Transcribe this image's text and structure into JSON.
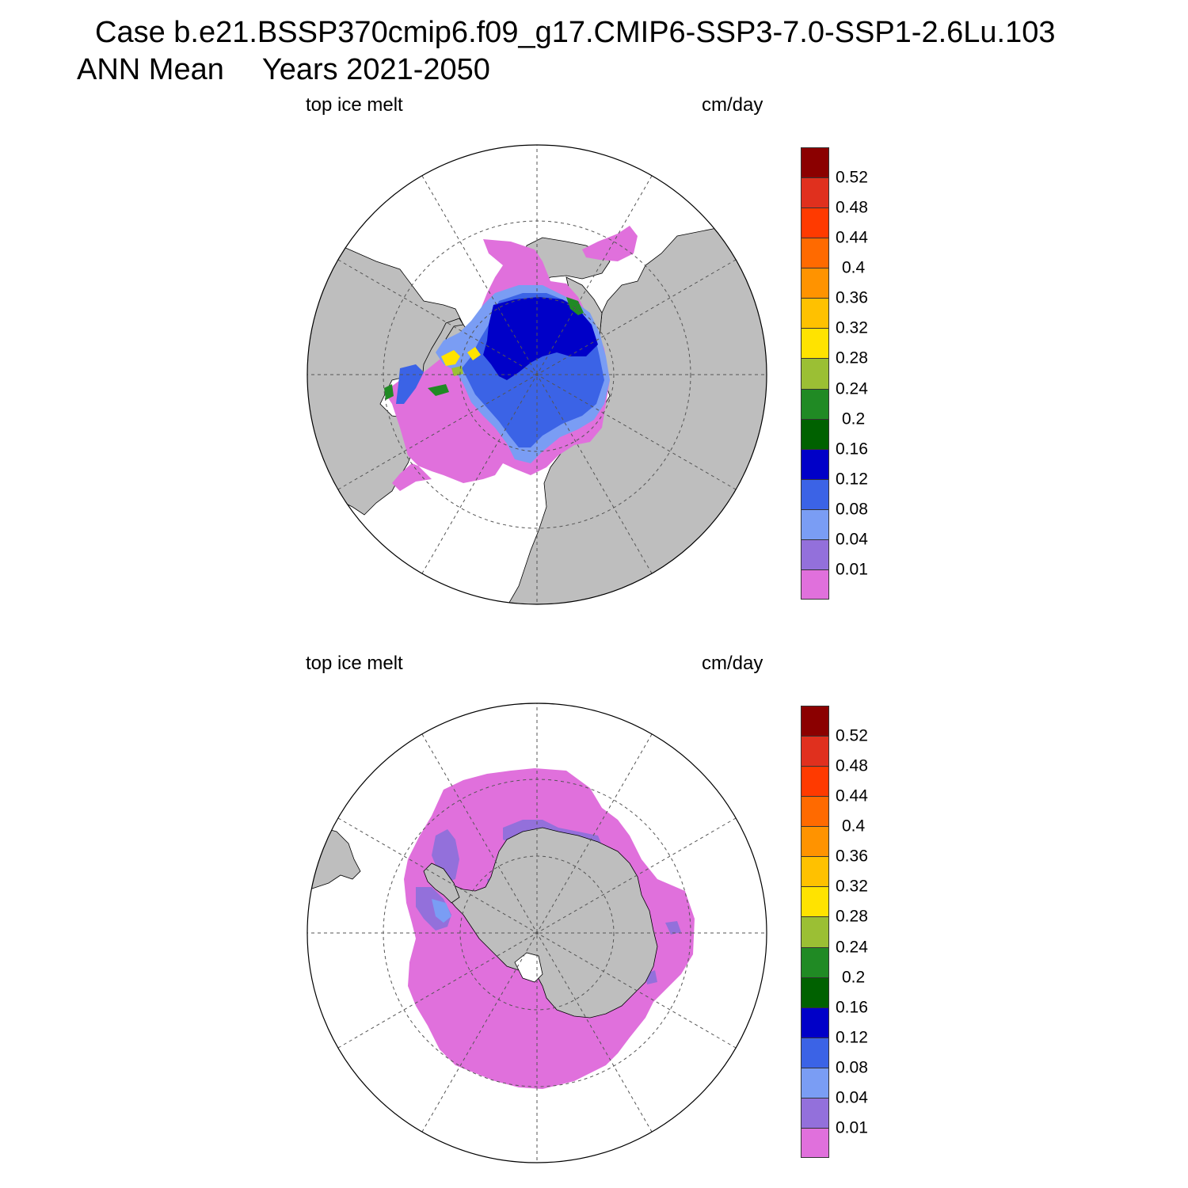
{
  "title": {
    "case_line": "Case b.e21.BSSP370cmip6.f09_g17.CMIP6-SSP3-7.0-SSP1-2.6Lu.103",
    "season": "ANN Mean",
    "years": "Years 2021-2050"
  },
  "panels": [
    {
      "hemisphere": "north",
      "variable_label": "top ice melt",
      "units_label": "cm/day"
    },
    {
      "hemisphere": "south",
      "variable_label": "top ice melt",
      "units_label": "cm/day"
    }
  ],
  "colorbar": {
    "labels": [
      "0.52",
      "0.48",
      "0.44",
      "0.4",
      "0.36",
      "0.32",
      "0.28",
      "0.24",
      "0.2",
      "0.16",
      "0.12",
      "0.08",
      "0.04",
      "0.01"
    ],
    "colors": [
      "#8b0000",
      "#e0301e",
      "#ff3a00",
      "#ff6a00",
      "#ff9300",
      "#ffc100",
      "#ffe300",
      "#9bbf34",
      "#208a24",
      "#006100",
      "#0000c8",
      "#3b63e6",
      "#7a9df4",
      "#9370db",
      "#e070dc"
    ]
  },
  "map_colors": {
    "land": "#bebebe",
    "ocean": "#ffffff",
    "outline": "#000000",
    "grid": "#555555"
  }
}
